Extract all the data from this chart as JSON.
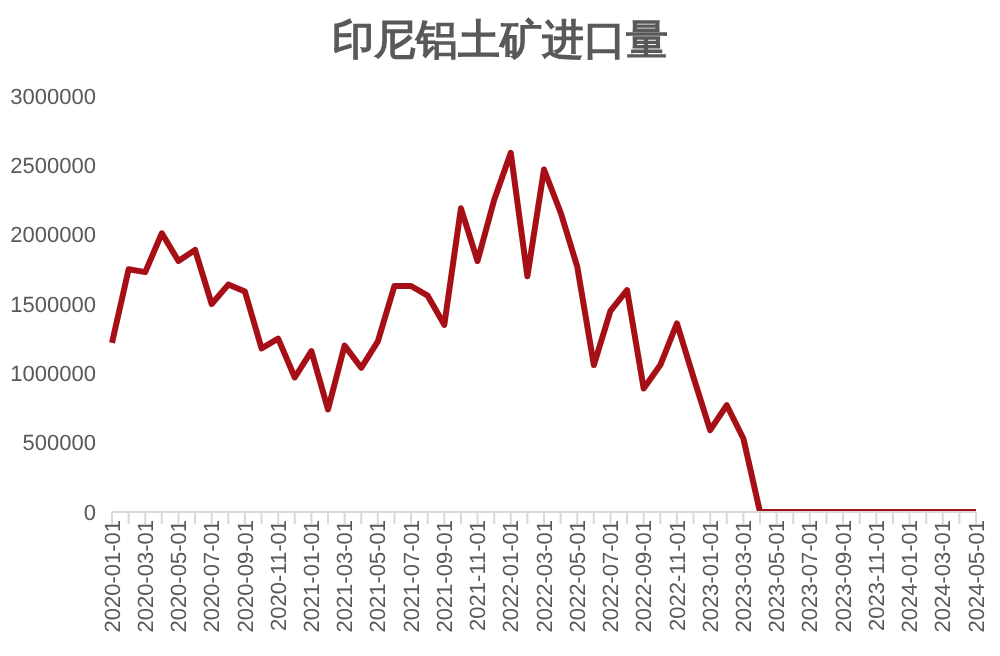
{
  "chart_data": {
    "type": "line",
    "title": "印尼铝土矿进口量",
    "categories": [
      "2020-01-01",
      null,
      "2020-03-01",
      null,
      "2020-05-01",
      null,
      "2020-07-01",
      null,
      "2020-09-01",
      null,
      "2020-11-01",
      null,
      "2021-01-01",
      null,
      "2021-03-01",
      null,
      "2021-05-01",
      null,
      "2021-07-01",
      null,
      "2021-09-01",
      null,
      "2021-11-01",
      null,
      "2022-01-01",
      null,
      "2022-03-01",
      null,
      "2022-05-01",
      null,
      "2022-07-01",
      null,
      "2022-09-01",
      null,
      "2022-11-01",
      null,
      "2023-01-01",
      null,
      "2023-03-01",
      null,
      "2023-05-01",
      null,
      "2023-07-01",
      null,
      "2023-09-01",
      null,
      "2023-11-01",
      null,
      "2024-01-01",
      null,
      "2024-03-01",
      null,
      "2024-05-01"
    ],
    "series": [
      {
        "color": "#a50f15",
        "values": [
          1220000,
          1750000,
          1730000,
          2010000,
          1810000,
          1890000,
          1500000,
          1640000,
          1590000,
          1180000,
          1250000,
          970000,
          1160000,
          740000,
          1200000,
          1040000,
          1230000,
          1630000,
          1630000,
          1560000,
          1350000,
          2190000,
          1810000,
          2250000,
          2590000,
          1700000,
          2470000,
          2160000,
          1770000,
          1060000,
          1450000,
          1600000,
          890000,
          1060000,
          1360000,
          970000,
          590000,
          770000,
          530000,
          0,
          0,
          0,
          0,
          0,
          0,
          0,
          0,
          0,
          0,
          0,
          0,
          0,
          0
        ]
      }
    ],
    "ylim": [
      0,
      3000000
    ],
    "yticks": [
      0,
      500000,
      1000000,
      1500000,
      2000000,
      2500000,
      3000000
    ],
    "grid": false,
    "legend": false,
    "marker": "none",
    "line_style": "solid"
  }
}
